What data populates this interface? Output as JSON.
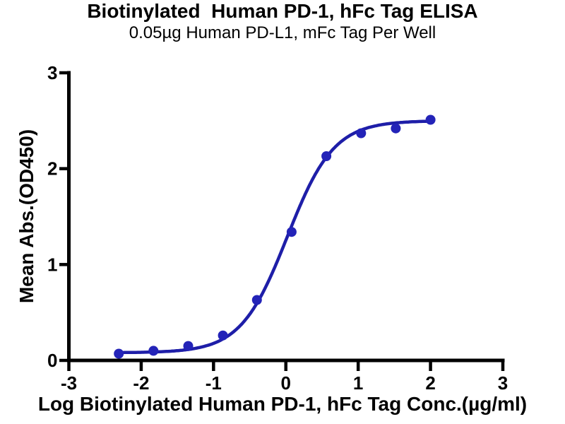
{
  "figure": {
    "title": "Biotinylated  Human PD-1, hFc Tag ELISA",
    "subtitle": "0.05µg Human PD-L1, mFc Tag Per Well",
    "x_axis_label": "Log Biotinylated Human PD-1, hFc Tag Conc.(µg/ml)",
    "y_axis_label": "Mean Abs.(OD450)"
  },
  "colors": {
    "curve": "#1e1ea8",
    "marker": "#2323b8",
    "axis": "#000000",
    "text": "#000000",
    "background": "#ffffff"
  },
  "chart_data": {
    "type": "scatter",
    "title": "Biotinylated  Human PD-1, hFc Tag ELISA",
    "subtitle": "0.05µg Human PD-L1, mFc Tag Per Well",
    "xlabel": "Log Biotinylated Human PD-1, hFc Tag Conc.(µg/ml)",
    "ylabel": "Mean Abs.(OD450)",
    "xlim": [
      -3,
      3
    ],
    "ylim": [
      0,
      3
    ],
    "x_ticks": [
      -3,
      -2,
      -1,
      0,
      1,
      2,
      3
    ],
    "y_ticks": [
      0,
      1,
      2,
      3
    ],
    "grid": false,
    "legend": "none",
    "series": [
      {
        "name": "Biotinylated Human PD-1, hFc Tag",
        "marker": "circle",
        "x": [
          -2.31,
          -1.83,
          -1.35,
          -0.87,
          -0.4,
          0.08,
          0.56,
          1.04,
          1.52,
          2.0
        ],
        "y": [
          0.07,
          0.1,
          0.15,
          0.26,
          0.63,
          1.34,
          2.13,
          2.37,
          2.42,
          2.51
        ]
      }
    ],
    "fit_curve": {
      "model": "4PL sigmoidal",
      "bottom": 0.08,
      "top": 2.5,
      "log_ec50": 0.02,
      "hill_slope": 1.35,
      "x_start": -2.31,
      "x_end": 2.0
    }
  }
}
